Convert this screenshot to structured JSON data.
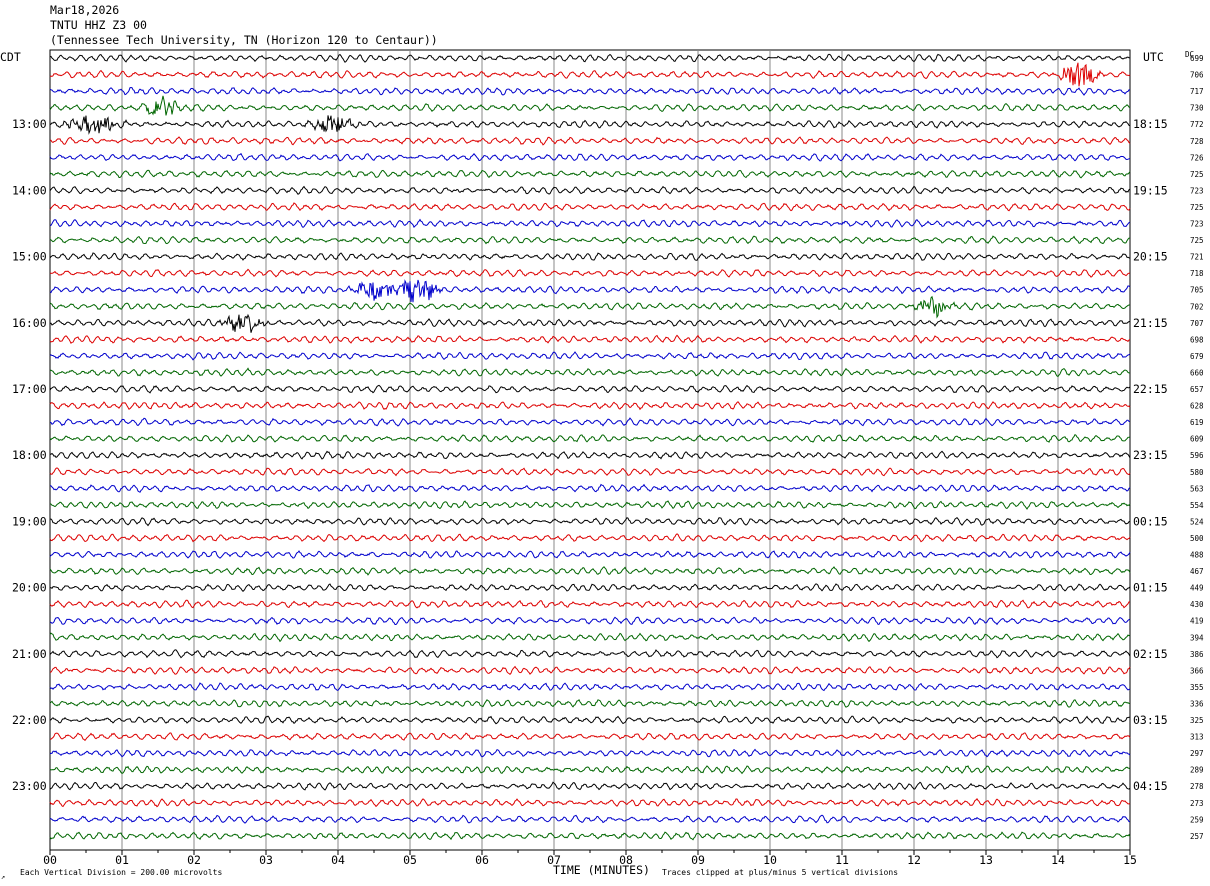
{
  "header": {
    "date": "Mar18,2026",
    "station": "TNTU HHZ Z3 00",
    "location": "(Tennessee Tech University, TN (Horizon 120 to Centaur))"
  },
  "left_zone": "CDT",
  "right_zone": "UTC",
  "dc_label": "DC",
  "footer": {
    "xlabel": "TIME (MINUTES)",
    "scale_note": "Each Vertical Division =  200.00 microvolts",
    "clip_note": "Traces clipped at plus/minus 5 vertical divisions",
    "corner_mark": "↗"
  },
  "colors": {
    "black": "#000000",
    "red": "#dd0000",
    "blue": "#0000cc",
    "green": "#006600",
    "grid": "#888888"
  },
  "chart_data": {
    "type": "line",
    "x_ticks": [
      "00",
      "01",
      "02",
      "03",
      "04",
      "05",
      "06",
      "07",
      "08",
      "09",
      "10",
      "11",
      "12",
      "13",
      "14",
      "15"
    ],
    "xlim": [
      0,
      15
    ],
    "row_minutes": 15,
    "series_colors": [
      "black",
      "red",
      "blue",
      "green"
    ],
    "left_hour_labels": [
      "13:00",
      "14:00",
      "15:00",
      "16:00",
      "17:00",
      "18:00",
      "19:00",
      "20:00",
      "21:00",
      "22:00",
      "23:00"
    ],
    "right_hour_labels": [
      "18:15",
      "19:15",
      "20:15",
      "21:15",
      "22:15",
      "23:15",
      "00:15",
      "01:15",
      "02:15",
      "03:15",
      "04:15"
    ],
    "hour_label_first_row": 4,
    "dc_offsets": [
      699,
      706,
      717,
      730,
      772,
      728,
      726,
      725,
      723,
      725,
      723,
      725,
      721,
      718,
      705,
      702,
      707,
      698,
      679,
      660,
      657,
      628,
      619,
      609,
      596,
      580,
      563,
      554,
      524,
      500,
      488,
      467,
      449,
      430,
      419,
      394,
      386,
      366,
      355,
      336,
      325,
      313,
      297,
      289,
      278,
      273,
      259,
      257
    ],
    "events": [
      {
        "row": 1,
        "minute": 14.3,
        "dur": 0.5,
        "amp": 12
      },
      {
        "row": 3,
        "minute": 1.55,
        "dur": 0.4,
        "amp": 12
      },
      {
        "row": 4,
        "minute": 0.6,
        "dur": 0.7,
        "amp": 9
      },
      {
        "row": 4,
        "minute": 3.95,
        "dur": 0.6,
        "amp": 8
      },
      {
        "row": 14,
        "minute": 4.5,
        "dur": 0.6,
        "amp": 10
      },
      {
        "row": 14,
        "minute": 5.1,
        "dur": 0.5,
        "amp": 14
      },
      {
        "row": 15,
        "minute": 12.3,
        "dur": 0.5,
        "amp": 10
      },
      {
        "row": 16,
        "minute": 2.7,
        "dur": 0.5,
        "amp": 11
      }
    ]
  }
}
